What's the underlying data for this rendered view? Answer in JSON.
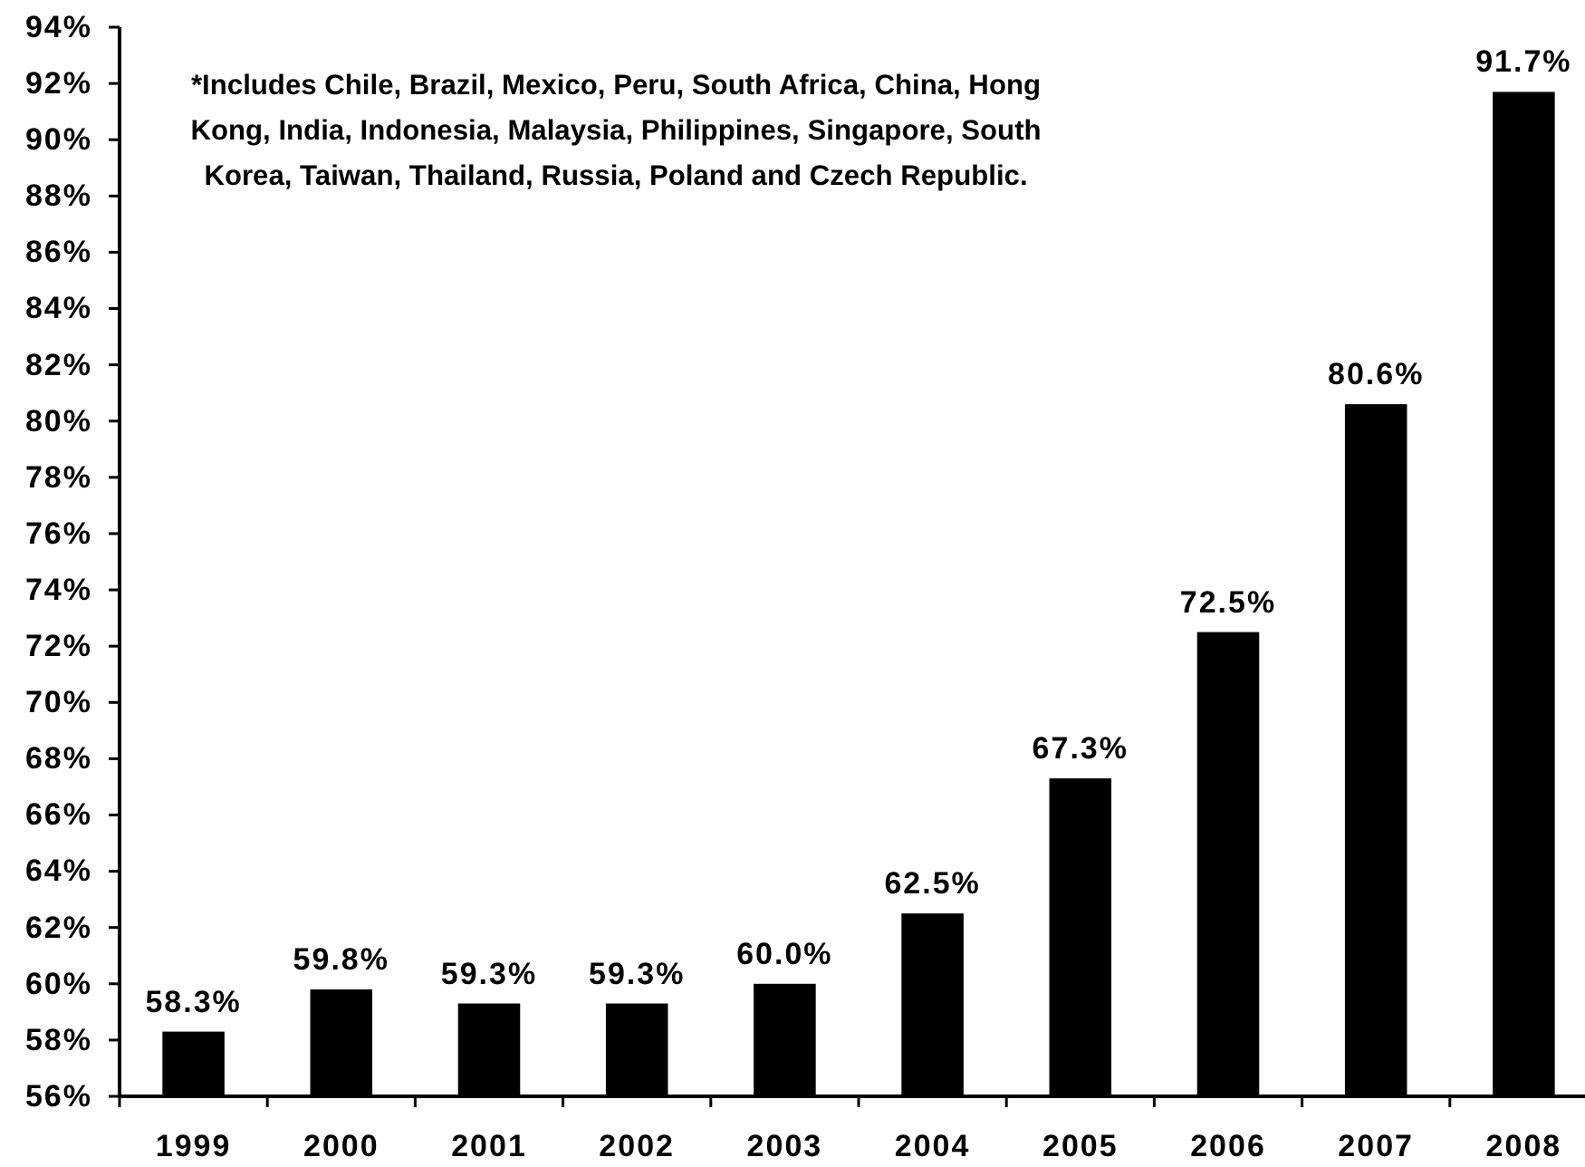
{
  "chart_data": {
    "type": "bar",
    "categories": [
      "1999",
      "2000",
      "2001",
      "2002",
      "2003",
      "2004",
      "2005",
      "2006",
      "2007",
      "2008"
    ],
    "values": [
      58.3,
      59.8,
      59.3,
      59.3,
      60.0,
      62.5,
      67.3,
      72.5,
      80.6,
      91.7
    ],
    "value_labels": [
      "58.3%",
      "59.8%",
      "59.3%",
      "59.3%",
      "60.0%",
      "62.5%",
      "67.3%",
      "72.5%",
      "80.6%",
      "91.7%"
    ],
    "color": "#000000",
    "ylim": [
      56,
      94
    ],
    "yticks": [
      {
        "value": 56,
        "label": "56%"
      },
      {
        "value": 58,
        "label": "58%"
      },
      {
        "value": 60,
        "label": "60%"
      },
      {
        "value": 62,
        "label": "62%"
      },
      {
        "value": 64,
        "label": "64%"
      },
      {
        "value": 66,
        "label": "66%"
      },
      {
        "value": 68,
        "label": "68%"
      },
      {
        "value": 70,
        "label": "70%"
      },
      {
        "value": 72,
        "label": "72%"
      },
      {
        "value": 74,
        "label": "74%"
      },
      {
        "value": 76,
        "label": "76%"
      },
      {
        "value": 78,
        "label": "78%"
      },
      {
        "value": 80,
        "label": "80%"
      },
      {
        "value": 82,
        "label": "82%"
      },
      {
        "value": 84,
        "label": "84%"
      },
      {
        "value": 86,
        "label": "86%"
      },
      {
        "value": 88,
        "label": "88%"
      },
      {
        "value": 90,
        "label": "90%"
      },
      {
        "value": 92,
        "label": "92%"
      },
      {
        "value": 94,
        "label": "94%"
      }
    ],
    "annotations": [
      "*Includes Chile, Brazil, Mexico, Peru, South Africa, China, Hong Kong, India, Indonesia, Malaysia, Philippines, Singapore, South Korea, Taiwan, Thailand, Russia, Poland and Czech Republic."
    ],
    "grid": false
  }
}
